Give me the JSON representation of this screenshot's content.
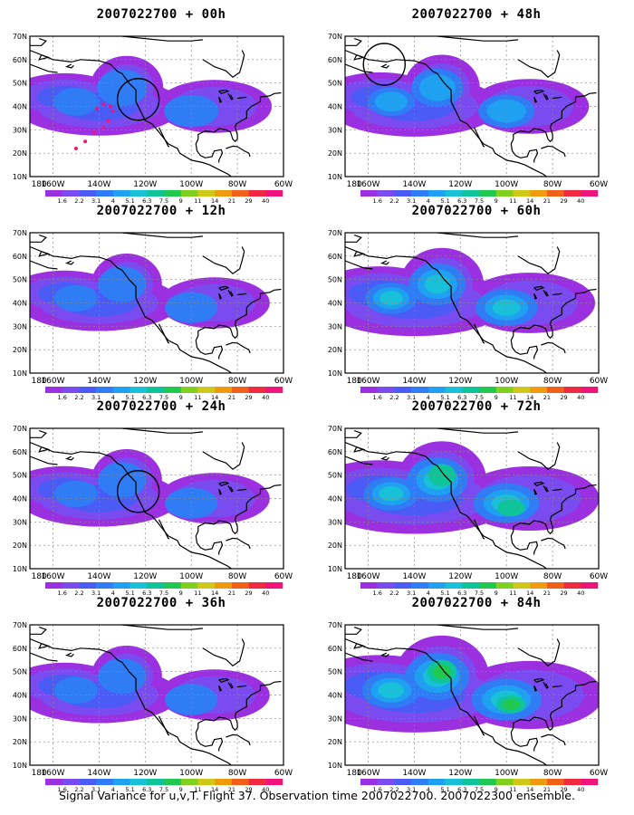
{
  "panels": [
    {
      "id": "p00",
      "title": "2007022700  + 00h",
      "lead_hours": 0,
      "intensity": 0.55,
      "circle": "west-coast",
      "observation_track": true
    },
    {
      "id": "p48",
      "title": "2007022700  + 48h",
      "lead_hours": 48,
      "intensity": 0.6,
      "circle": "alaska"
    },
    {
      "id": "p12",
      "title": "2007022700  + 12h",
      "lead_hours": 12,
      "intensity": 0.5
    },
    {
      "id": "p60",
      "title": "2007022700  + 60h",
      "lead_hours": 60,
      "intensity": 0.75
    },
    {
      "id": "p24",
      "title": "2007022700  + 24h",
      "lead_hours": 24,
      "intensity": 0.5,
      "circle": "west-coast"
    },
    {
      "id": "p72",
      "title": "2007022700  + 72h",
      "lead_hours": 72,
      "intensity": 0.85
    },
    {
      "id": "p36",
      "title": "2007022700  + 36h",
      "lead_hours": 36,
      "intensity": 0.5
    },
    {
      "id": "p84",
      "title": "2007022700  + 84h",
      "lead_hours": 84,
      "intensity": 0.95
    }
  ],
  "axes": {
    "lon_labels": [
      "180",
      "160W",
      "140W",
      "120W",
      "100W",
      "80W",
      "60W"
    ],
    "lat_labels": [
      "70N",
      "60N",
      "50N",
      "40N",
      "30N",
      "20N",
      "10N"
    ]
  },
  "colorbar": {
    "labels": [
      "1.6",
      "2.2",
      "3.1",
      "4",
      "5.1",
      "6.3",
      "7.5",
      "9",
      "11",
      "14",
      "21",
      "29",
      "40"
    ],
    "colors": [
      "#9b30e0",
      "#7a4cf0",
      "#4a5cf5",
      "#2f7cf5",
      "#1fa0f0",
      "#18c0d8",
      "#10c49a",
      "#20c850",
      "#80d020",
      "#d0c818",
      "#f09a10",
      "#f06018",
      "#f02a40",
      "#f0147a"
    ]
  },
  "caption": "Signal Variance for u,v,T. Flight 37. Observation time 2007022700. 2007022300 ensemble."
}
